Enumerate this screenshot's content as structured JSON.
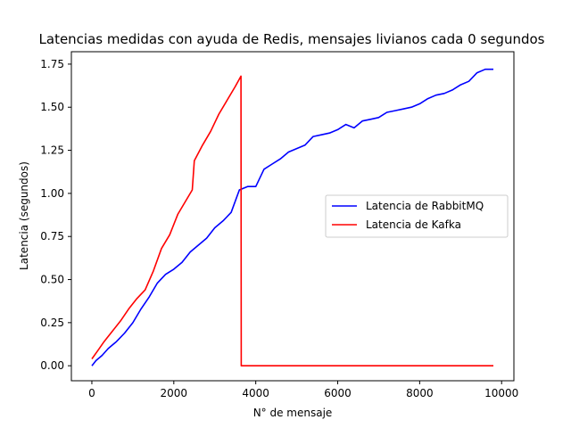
{
  "chart_data": {
    "type": "line",
    "title": "Latencias medidas con ayuda de Redis, mensajes livianos cada 0 segundos",
    "xlabel": "N° de mensaje",
    "ylabel": "Latencia (segundos)",
    "xlim": [
      -500,
      10300
    ],
    "ylim": [
      -0.087,
      1.822
    ],
    "xticks": [
      0,
      2000,
      4000,
      6000,
      8000,
      10000
    ],
    "xtick_labels": [
      "0",
      "2000",
      "4000",
      "6000",
      "8000",
      "10000"
    ],
    "yticks": [
      0.0,
      0.25,
      0.5,
      0.75,
      1.0,
      1.25,
      1.5,
      1.75
    ],
    "ytick_labels": [
      "0.00",
      "0.25",
      "0.50",
      "0.75",
      "1.00",
      "1.25",
      "1.50",
      "1.75"
    ],
    "grid": false,
    "legend_position": "center-right",
    "series": [
      {
        "name": "Latencia de RabbitMQ",
        "color": "#0000ff",
        "x": [
          0,
          100,
          250,
          400,
          600,
          800,
          1000,
          1200,
          1400,
          1600,
          1800,
          2000,
          2200,
          2400,
          2600,
          2800,
          3000,
          3200,
          3400,
          3600,
          3800,
          4000,
          4200,
          4400,
          4600,
          4800,
          5000,
          5200,
          5400,
          5600,
          5800,
          6000,
          6200,
          6400,
          6600,
          6800,
          7000,
          7200,
          7400,
          7600,
          7800,
          8000,
          8200,
          8400,
          8600,
          8800,
          9000,
          9200,
          9400,
          9600,
          9800
        ],
        "y": [
          0.0,
          0.03,
          0.06,
          0.1,
          0.14,
          0.19,
          0.25,
          0.33,
          0.4,
          0.48,
          0.53,
          0.56,
          0.6,
          0.66,
          0.7,
          0.74,
          0.8,
          0.84,
          0.89,
          1.02,
          1.04,
          1.04,
          1.14,
          1.17,
          1.2,
          1.24,
          1.26,
          1.28,
          1.33,
          1.34,
          1.35,
          1.37,
          1.4,
          1.38,
          1.42,
          1.43,
          1.44,
          1.47,
          1.48,
          1.49,
          1.5,
          1.52,
          1.55,
          1.57,
          1.58,
          1.6,
          1.63,
          1.65,
          1.7,
          1.72,
          1.72
        ]
      },
      {
        "name": "Latencia de Kafka",
        "color": "#ff0000",
        "x": [
          0,
          150,
          300,
          500,
          700,
          900,
          1100,
          1300,
          1500,
          1700,
          1900,
          2100,
          2300,
          2450,
          2500,
          2700,
          2900,
          3100,
          3300,
          3500,
          3640,
          3645,
          9800
        ],
        "y": [
          0.04,
          0.09,
          0.14,
          0.2,
          0.26,
          0.33,
          0.39,
          0.44,
          0.55,
          0.68,
          0.76,
          0.88,
          0.96,
          1.02,
          1.19,
          1.28,
          1.36,
          1.46,
          1.54,
          1.62,
          1.68,
          0.0,
          0.0
        ]
      }
    ]
  }
}
